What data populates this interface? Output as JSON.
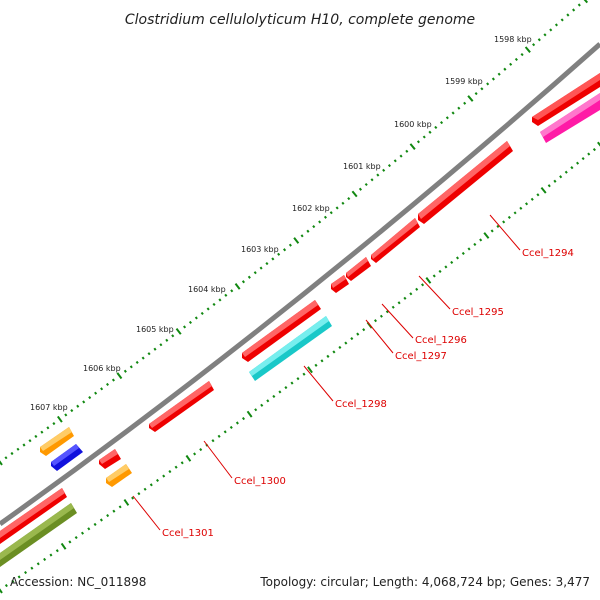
{
  "title": "Clostridium cellulolyticum H10, complete genome",
  "footer": {
    "accession": "Accession: NC_011898",
    "summary": "Topology: circular; Length: 4,068,724 bp; Genes: 3,477"
  },
  "colors": {
    "backbone": "#808080",
    "tick": "#118811",
    "label_line": "#dd0000",
    "label_text": "#dd0000"
  },
  "kbp_labels": [
    "1598 kbp",
    "1599 kbp",
    "1600 kbp",
    "1601 kbp",
    "1602 kbp",
    "1603 kbp",
    "1604 kbp",
    "1605 kbp",
    "1606 kbp",
    "1607 kbp"
  ],
  "gene_labels": [
    "Ccel_1294",
    "Ccel_1295",
    "Ccel_1296",
    "Ccel_1297",
    "Ccel_1298",
    "Ccel_1300",
    "Ccel_1301"
  ],
  "features": [
    {
      "name": "gene-1294",
      "color": "red",
      "direction": "forward"
    },
    {
      "name": "gene-1295",
      "color": "red",
      "direction": "forward"
    },
    {
      "name": "gene-1296",
      "color": "red",
      "direction": "forward"
    },
    {
      "name": "gene-1297",
      "color": "red",
      "direction": "forward"
    },
    {
      "name": "gene-1298",
      "color": "cyan",
      "direction": "forward"
    },
    {
      "name": "gene-1300",
      "color": "red",
      "direction": "forward"
    },
    {
      "name": "gene-1301",
      "color": "orange",
      "direction": "forward"
    }
  ]
}
